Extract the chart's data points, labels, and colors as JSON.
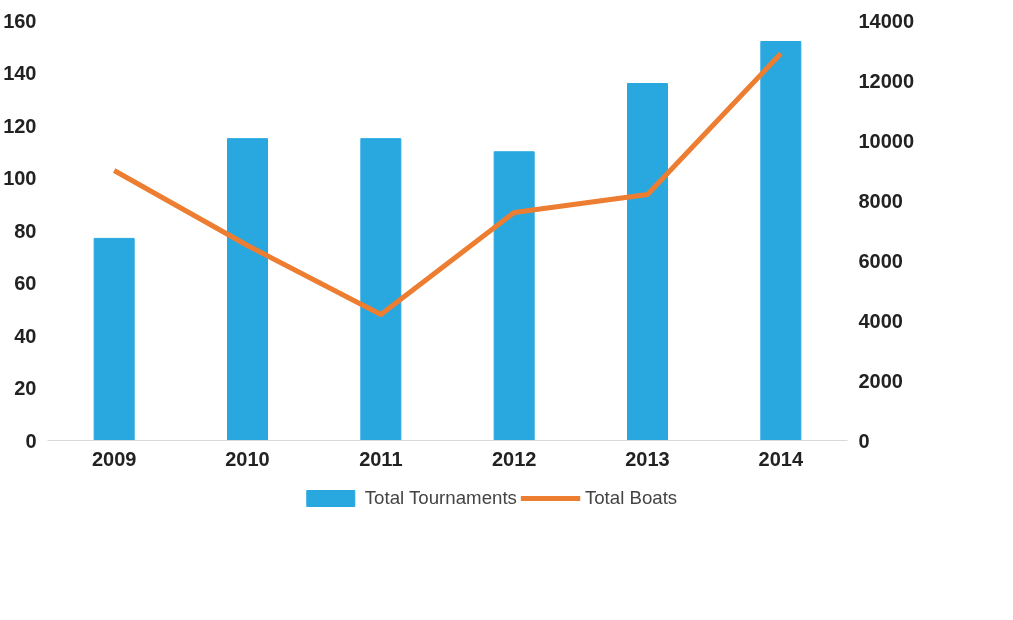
{
  "chart_data": {
    "type": "bar",
    "categories": [
      "2009",
      "2010",
      "2011",
      "2012",
      "2013",
      "2014"
    ],
    "series": [
      {
        "name": "Total Tournaments",
        "color": "#29a8e0",
        "values": [
          77,
          115,
          115,
          110,
          136,
          152
        ]
      },
      {
        "name": "Total Boats",
        "type": "line",
        "axis": "y2",
        "color": "#ed7d31",
        "values": [
          9000,
          6500,
          4200,
          7600,
          8200,
          12900
        ]
      }
    ],
    "ylim": [
      0,
      160
    ],
    "yticks": [
      0,
      20,
      40,
      60,
      80,
      100,
      120,
      140,
      160
    ],
    "y2lim": [
      0,
      14000
    ],
    "y2ticks": [
      0,
      2000,
      4000,
      6000,
      8000,
      10000,
      12000,
      14000
    ],
    "grid": false,
    "legend": "bottom",
    "marker": "none",
    "line_style": "solid"
  }
}
